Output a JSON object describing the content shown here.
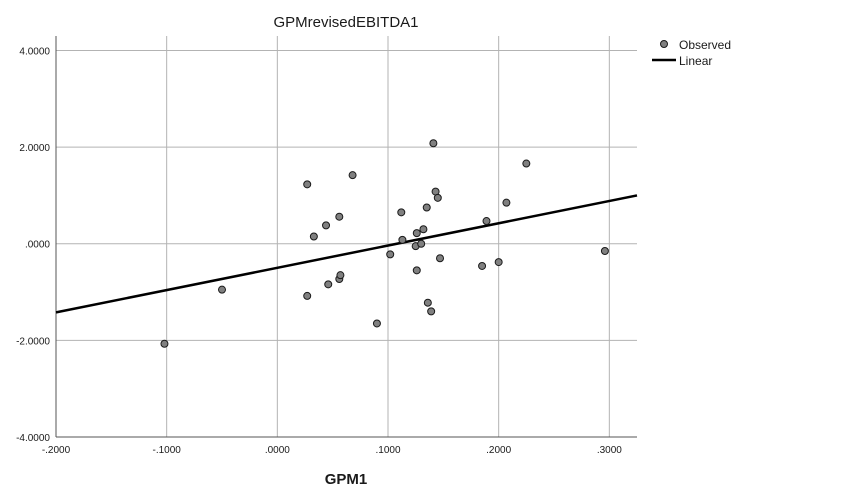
{
  "chart_data": {
    "type": "scatter",
    "title": "GPMrevisedEBITDA1",
    "xlabel": "GPM1",
    "ylabel": "",
    "xlim": [
      -0.2,
      0.325
    ],
    "ylim": [
      -4,
      4.3
    ],
    "x_ticks": [
      -0.2,
      -0.1,
      0.0,
      0.1,
      0.2,
      0.3
    ],
    "x_tick_labels": [
      "-.2000",
      "-.1000",
      ".0000",
      ".1000",
      ".2000",
      ".3000"
    ],
    "y_ticks": [
      -4,
      -2,
      0,
      2,
      4
    ],
    "y_tick_labels": [
      "-4.0000",
      "-2.0000",
      ".0000",
      "2.0000",
      "4.0000"
    ],
    "grid": true,
    "legend_position": "top-right",
    "colors": {
      "marker_fill": "#808080",
      "marker_stroke": "#1a1a1a",
      "line": "#000000",
      "grid": "#b3b3b3",
      "axis": "#555555"
    },
    "series": [
      {
        "name": "Observed",
        "kind": "points",
        "points": [
          [
            -0.102,
            -2.07
          ],
          [
            -0.05,
            -0.95
          ],
          [
            0.027,
            1.23
          ],
          [
            0.027,
            -1.08
          ],
          [
            0.033,
            0.15
          ],
          [
            0.044,
            0.38
          ],
          [
            0.046,
            -0.84
          ],
          [
            0.056,
            0.56
          ],
          [
            0.056,
            -0.73
          ],
          [
            0.057,
            -0.65
          ],
          [
            0.068,
            1.42
          ],
          [
            0.09,
            -1.65
          ],
          [
            0.102,
            -0.22
          ],
          [
            0.112,
            0.65
          ],
          [
            0.113,
            0.08
          ],
          [
            0.125,
            -0.05
          ],
          [
            0.126,
            0.22
          ],
          [
            0.126,
            -0.55
          ],
          [
            0.13,
            0.0
          ],
          [
            0.132,
            0.3
          ],
          [
            0.135,
            0.75
          ],
          [
            0.136,
            -1.22
          ],
          [
            0.139,
            -1.4
          ],
          [
            0.141,
            2.08
          ],
          [
            0.143,
            1.08
          ],
          [
            0.145,
            0.95
          ],
          [
            0.147,
            -0.3
          ],
          [
            0.185,
            -0.46
          ],
          [
            0.189,
            0.47
          ],
          [
            0.2,
            -0.38
          ],
          [
            0.207,
            0.85
          ],
          [
            0.225,
            1.66
          ],
          [
            0.296,
            -0.15
          ]
        ]
      },
      {
        "name": "Linear",
        "kind": "line",
        "x": [
          -0.2,
          0.325
        ],
        "y": [
          -1.42,
          1.0
        ]
      }
    ]
  }
}
